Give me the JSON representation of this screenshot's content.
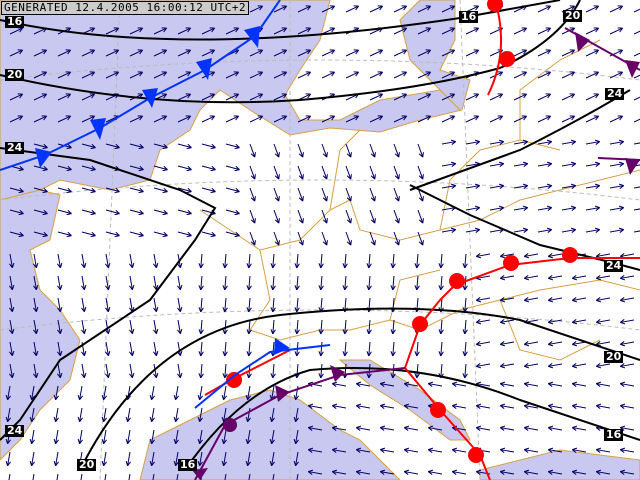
{
  "header": {
    "generated": "GENERATED 12.4.2005 16:00:12 UTC+2"
  },
  "colors": {
    "sea": "#c8c8f0",
    "land": "#ffffff",
    "border": "#d9a040",
    "wind_arrow": "#000066",
    "isobar": "#000000",
    "cold_front": "#0033ff",
    "warm_front": "#ff0000",
    "occluded_front": "#660066"
  },
  "isobar_labels": [
    "16",
    "20",
    "24",
    "16",
    "20",
    "24",
    "24",
    "20",
    "16",
    "24",
    "20",
    "16"
  ]
}
